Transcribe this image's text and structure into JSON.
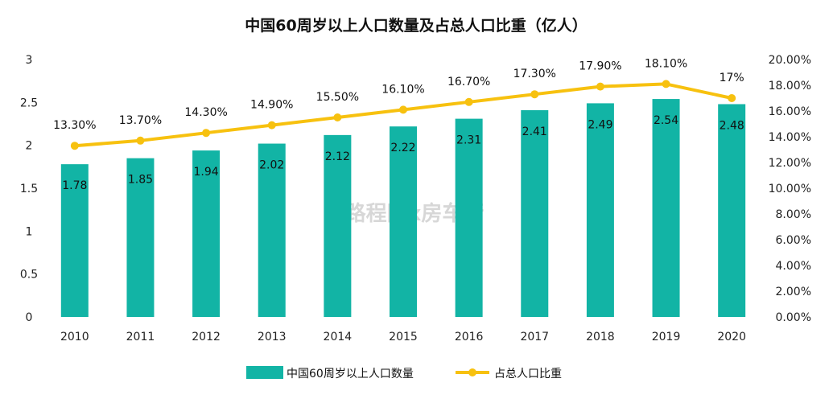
{
  "colors": {
    "bar": "#12B4A5",
    "line": "#F7C10F",
    "watermark": "#d7d7d7"
  },
  "watermark": "路程网x房车行",
  "chart_data": {
    "type": "bar",
    "title": "中国60周岁以上人口数量及占总人口比重（亿人）",
    "categories": [
      "2010",
      "2011",
      "2012",
      "2013",
      "2014",
      "2015",
      "2016",
      "2017",
      "2018",
      "2019",
      "2020"
    ],
    "series": [
      {
        "name": "中国60周岁以上人口数量",
        "type": "bar",
        "axis": "left",
        "values": [
          1.78,
          1.85,
          1.94,
          2.02,
          2.12,
          2.22,
          2.31,
          2.41,
          2.49,
          2.54,
          2.48
        ],
        "labels": [
          "1.78",
          "1.85",
          "1.94",
          "2.02",
          "2.12",
          "2.22",
          "2.31",
          "2.41",
          "2.49",
          "2.54",
          "2.48"
        ]
      },
      {
        "name": "占总人口比重",
        "type": "line",
        "axis": "right",
        "values": [
          13.3,
          13.7,
          14.3,
          14.9,
          15.5,
          16.1,
          16.7,
          17.3,
          17.9,
          18.1,
          17.0
        ],
        "labels": [
          "13.30%",
          "13.70%",
          "14.30%",
          "14.90%",
          "15.50%",
          "16.10%",
          "16.70%",
          "17.30%",
          "17.90%",
          "18.10%",
          "17%"
        ]
      }
    ],
    "y_left": {
      "ylim": [
        0,
        3
      ],
      "ticks": [
        0,
        0.5,
        1,
        1.5,
        2,
        2.5,
        3
      ],
      "tick_labels": [
        "0",
        "0.5",
        "1",
        "1.5",
        "2",
        "2.5",
        "3"
      ]
    },
    "y_right": {
      "ylim": [
        0,
        20
      ],
      "ticks": [
        0,
        2,
        4,
        6,
        8,
        10,
        12,
        14,
        16,
        18,
        20
      ],
      "tick_labels": [
        "0.00%",
        "2.00%",
        "4.00%",
        "6.00%",
        "8.00%",
        "10.00%",
        "12.00%",
        "14.00%",
        "16.00%",
        "18.00%",
        "20.00%"
      ]
    },
    "legend_position": "bottom"
  }
}
